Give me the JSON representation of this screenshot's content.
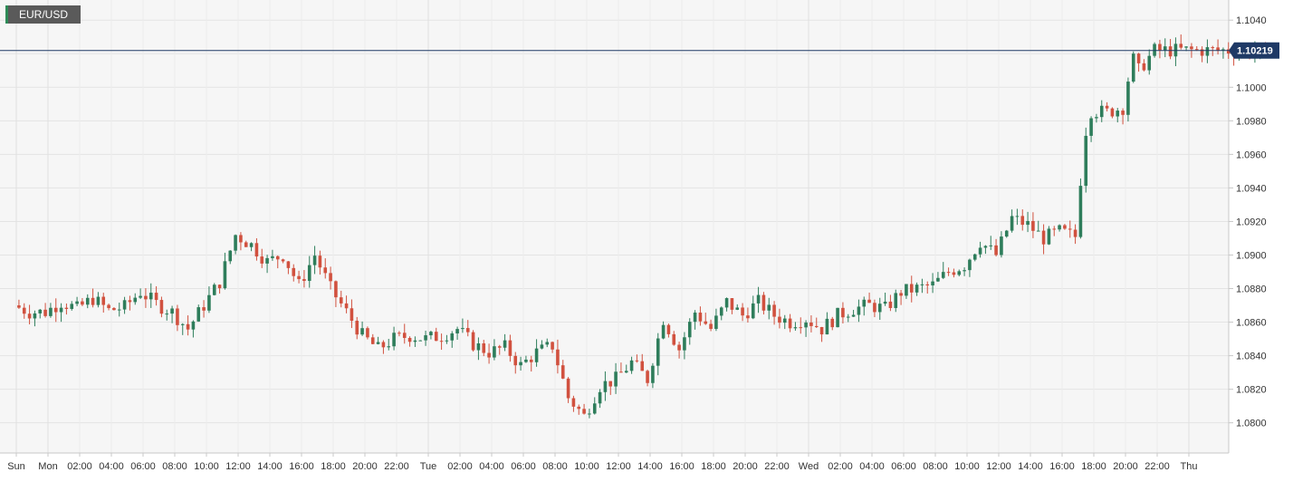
{
  "symbol": "EUR/USD",
  "chart_data": {
    "type": "candlestick",
    "title": "EUR/USD",
    "current_price": "1.10219",
    "ylim": [
      1.0782,
      1.1052
    ],
    "y_ticks": [
      "1.0800",
      "1.0820",
      "1.0840",
      "1.0860",
      "1.0880",
      "1.0900",
      "1.0920",
      "1.0940",
      "1.0960",
      "1.0980",
      "1.1000",
      "1.1020",
      "1.1040"
    ],
    "x_ticks": [
      "Sun",
      "Mon",
      "02:00",
      "04:00",
      "06:00",
      "08:00",
      "10:00",
      "12:00",
      "14:00",
      "16:00",
      "18:00",
      "20:00",
      "22:00",
      "Tue",
      "02:00",
      "04:00",
      "06:00",
      "08:00",
      "10:00",
      "12:00",
      "14:00",
      "16:00",
      "18:00",
      "20:00",
      "22:00",
      "Wed",
      "02:00",
      "04:00",
      "06:00",
      "08:00",
      "10:00",
      "12:00",
      "14:00",
      "16:00",
      "18:00",
      "20:00",
      "22:00",
      "Thu"
    ],
    "candle_interval_minutes": 20,
    "closes_path": [
      [
        0,
        1.087
      ],
      [
        1,
        1.0866
      ],
      [
        2,
        1.0866
      ],
      [
        3,
        1.0872
      ],
      [
        4,
        1.0868
      ],
      [
        5,
        1.0874
      ],
      [
        6,
        1.0867
      ],
      [
        7,
        1.0869
      ],
      [
        8,
        1.0878
      ],
      [
        9,
        1.0871
      ],
      [
        10,
        1.0866
      ],
      [
        11,
        1.0856
      ],
      [
        12,
        1.087
      ],
      [
        13,
        1.0884
      ],
      [
        14,
        1.0912
      ],
      [
        15,
        1.0906
      ],
      [
        16,
        1.0896
      ],
      [
        17,
        1.09
      ],
      [
        18,
        1.0882
      ],
      [
        19,
        1.09
      ],
      [
        20,
        1.088
      ],
      [
        21,
        1.0866
      ],
      [
        22,
        1.0852
      ],
      [
        23,
        1.0844
      ],
      [
        24,
        1.085
      ],
      [
        25,
        1.0852
      ],
      [
        26,
        1.085
      ],
      [
        27,
        1.0852
      ],
      [
        28,
        1.0856
      ],
      [
        29,
        1.0847
      ],
      [
        30,
        1.0842
      ],
      [
        31,
        1.0845
      ],
      [
        32,
        1.0834
      ],
      [
        33,
        1.0842
      ],
      [
        34,
        1.0846
      ],
      [
        35,
        1.0815
      ],
      [
        36,
        1.0804
      ],
      [
        37,
        1.0822
      ],
      [
        38,
        1.0826
      ],
      [
        39,
        1.0836
      ],
      [
        40,
        1.0826
      ],
      [
        41,
        1.0862
      ],
      [
        42,
        1.0844
      ],
      [
        43,
        1.0866
      ],
      [
        44,
        1.0856
      ],
      [
        45,
        1.0872
      ],
      [
        46,
        1.0864
      ],
      [
        47,
        1.0872
      ],
      [
        48,
        1.0864
      ],
      [
        49,
        1.086
      ],
      [
        50,
        1.0862
      ],
      [
        51,
        1.0856
      ],
      [
        52,
        1.0864
      ],
      [
        53,
        1.0868
      ],
      [
        54,
        1.087
      ],
      [
        55,
        1.0868
      ],
      [
        56,
        1.0878
      ],
      [
        57,
        1.088
      ],
      [
        58,
        1.0882
      ],
      [
        59,
        1.089
      ],
      [
        60,
        1.0894
      ],
      [
        61,
        1.0908
      ],
      [
        62,
        1.09
      ],
      [
        63,
        1.0922
      ],
      [
        64,
        1.0918
      ],
      [
        65,
        1.091
      ],
      [
        66,
        1.0914
      ],
      [
        67,
        1.0911
      ],
      [
        67.6,
        1.0972
      ],
      [
        68,
        1.0986
      ],
      [
        69,
        1.0985
      ],
      [
        70,
        1.0988
      ],
      [
        70.6,
        1.1018
      ],
      [
        71,
        1.101
      ],
      [
        72,
        1.1022
      ]
    ]
  }
}
